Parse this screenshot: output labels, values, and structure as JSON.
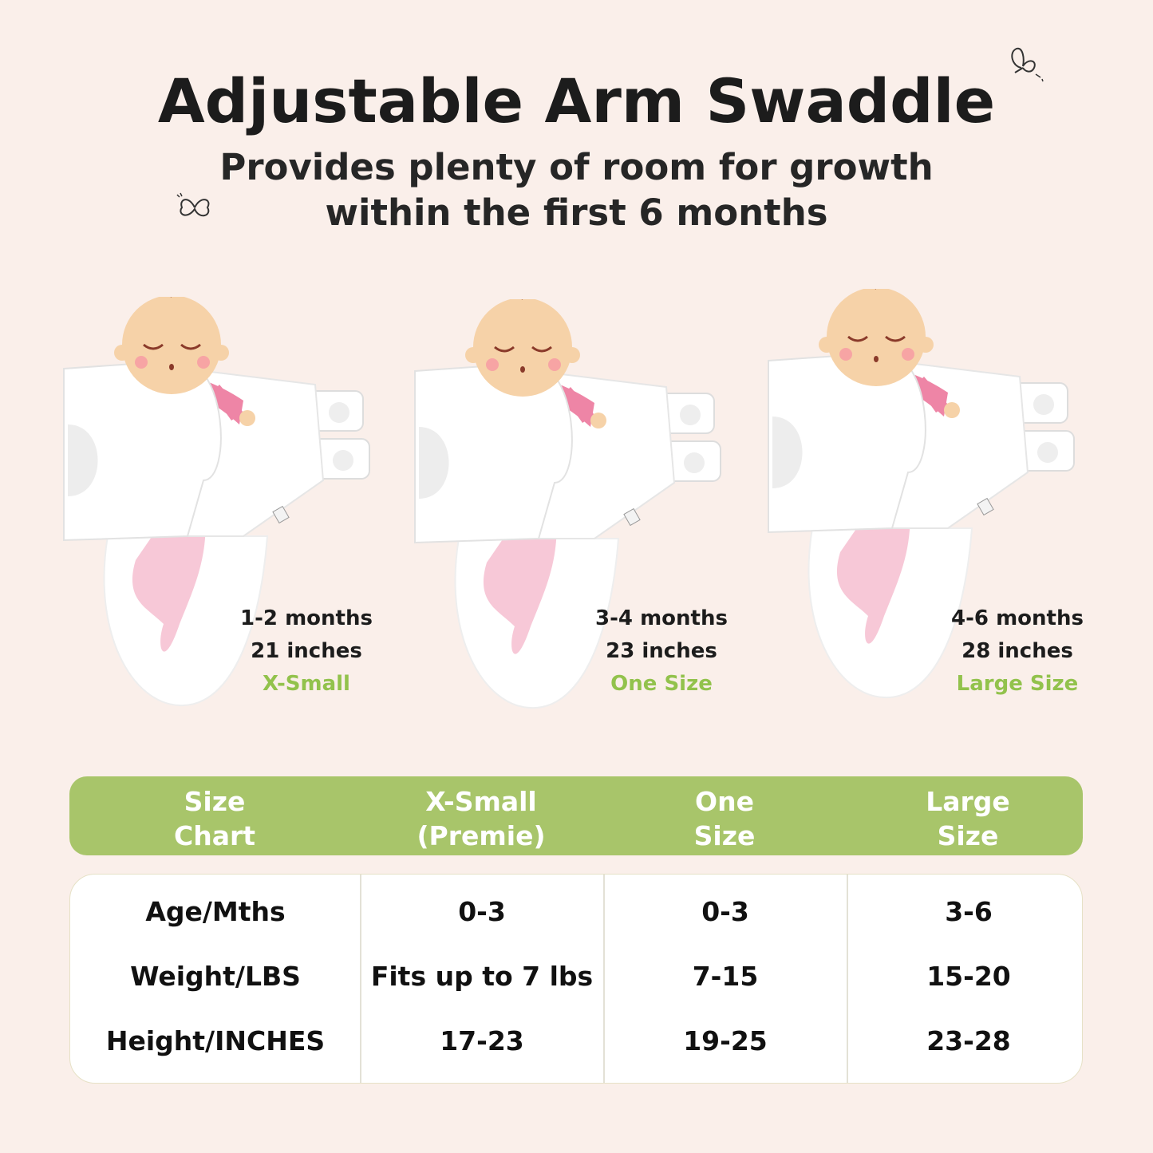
{
  "header": {
    "title": "Adjustable Arm Swaddle",
    "subtitle_line1": "Provides plenty of room for growth",
    "subtitle_line2": "within the first 6 months"
  },
  "colors": {
    "background": "#faefea",
    "accent_green": "#a8c56a",
    "size_text_green": "#92c24c",
    "onesie_pink": "#ee85a6",
    "skin": "#f6d2a8"
  },
  "products": [
    {
      "age": "1-2 months",
      "length": "21 inches",
      "size": "X-Small"
    },
    {
      "age": "3-4 months",
      "length": "23 inches",
      "size": "One Size"
    },
    {
      "age": "4-6 months",
      "length": "28 inches",
      "size": "Large Size"
    }
  ],
  "size_chart": {
    "headers": [
      "Size\nChart",
      "X-Small\n(Premie)",
      "One\nSize",
      "Large\nSize"
    ],
    "rows": [
      [
        "Age/Mths",
        "0-3",
        "0-3",
        "3-6"
      ],
      [
        "Weight/LBS",
        "Fits up to 7 lbs",
        "7-15",
        "15-20"
      ],
      [
        "Height/INCHES",
        "17-23",
        "19-25",
        "23-28"
      ]
    ]
  },
  "icons": [
    "butterfly-icon",
    "butterfly-icon"
  ]
}
